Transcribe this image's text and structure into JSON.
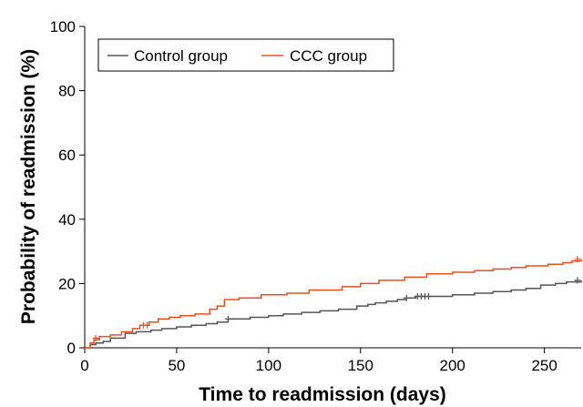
{
  "chart_data": {
    "type": "line",
    "step": true,
    "xlabel": "Time to readmission (days)",
    "ylabel": "Probability of readmission (%)",
    "xlim": [
      0,
      270
    ],
    "ylim": [
      0,
      100
    ],
    "xticks": [
      0,
      50,
      100,
      150,
      200,
      250
    ],
    "yticks": [
      0,
      20,
      40,
      60,
      80,
      100
    ],
    "grid": false,
    "legend_position": "top-left",
    "series": [
      {
        "name": "Control group",
        "color": "#555555",
        "x": [
          0,
          3,
          6,
          10,
          14,
          22,
          28,
          36,
          42,
          50,
          58,
          66,
          72,
          78,
          90,
          100,
          108,
          118,
          128,
          138,
          148,
          154,
          158,
          164,
          170,
          175,
          180,
          200,
          212,
          222,
          232,
          240,
          248,
          256,
          262,
          270
        ],
        "y": [
          0,
          1,
          1.5,
          2,
          3,
          4.5,
          5,
          5.5,
          6,
          6.5,
          7,
          7.5,
          8,
          9,
          9.5,
          10,
          10.5,
          11,
          11.5,
          12,
          13,
          13.5,
          14,
          14.5,
          15,
          15.5,
          16,
          16.5,
          17,
          17.5,
          18,
          18.5,
          19.5,
          20,
          20.5,
          21
        ],
        "censor_x": [
          78,
          175,
          181,
          183,
          185,
          187,
          268
        ],
        "censor_y": [
          9,
          15.5,
          16,
          16,
          16,
          16,
          21
        ]
      },
      {
        "name": "CCC group",
        "color": "#e8501e",
        "x": [
          0,
          3,
          5,
          8,
          14,
          20,
          26,
          30,
          35,
          40,
          46,
          52,
          60,
          68,
          72,
          76,
          84,
          96,
          110,
          122,
          140,
          150,
          160,
          174,
          186,
          200,
          212,
          222,
          232,
          240,
          252,
          260,
          265,
          270
        ],
        "y": [
          0,
          1.5,
          2.5,
          3.5,
          4,
          5,
          6,
          7,
          8,
          9,
          9.5,
          10,
          10.5,
          12,
          13,
          15,
          15.5,
          16.5,
          17,
          18,
          19,
          20,
          21,
          22,
          23,
          23.5,
          24,
          24.5,
          25,
          25.5,
          26,
          26.5,
          27,
          27.5
        ],
        "censor_x": [
          6,
          32,
          34,
          268
        ],
        "censor_y": [
          3,
          7,
          7,
          27.5
        ]
      }
    ]
  }
}
